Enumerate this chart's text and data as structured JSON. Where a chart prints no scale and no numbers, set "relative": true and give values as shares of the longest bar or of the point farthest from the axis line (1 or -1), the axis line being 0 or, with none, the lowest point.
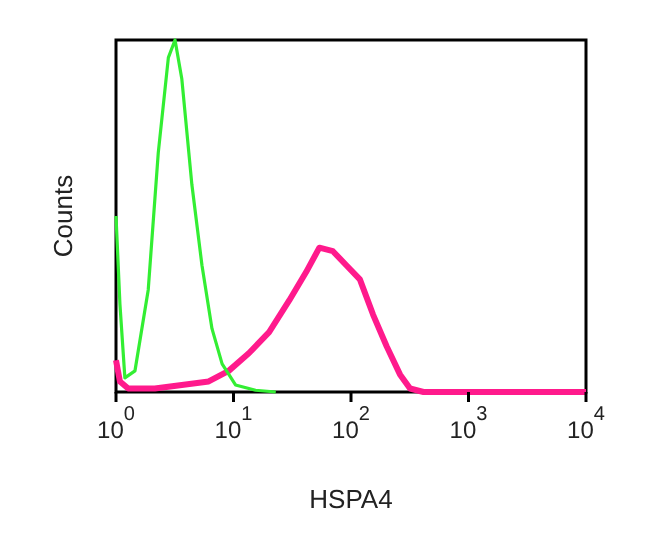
{
  "chart_data": {
    "type": "line",
    "relative": true,
    "xlabel": "HSPA4",
    "ylabel": "Counts",
    "log": "x",
    "xlim": [
      1,
      10000
    ],
    "xticks": [
      {
        "value": 1,
        "label": "10$^{0}$"
      },
      {
        "value": 10,
        "label": "10$^{1}$"
      },
      {
        "value": 100,
        "label": "10$^{2}$"
      },
      {
        "value": 1000,
        "label": "10$^{3}$"
      },
      {
        "value": 10000,
        "label": "10$^{4}$"
      }
    ],
    "legend": false,
    "marker": "none",
    "line_style": "solid",
    "series": [
      {
        "color": "#33ee33",
        "x": [
          1,
          1.03,
          1.08,
          1.19,
          1.45,
          1.88,
          2.29,
          2.79,
          3.18,
          3.63,
          4.42,
          5.39,
          6.56,
          8.0,
          10.4,
          15.4,
          22.9
        ],
        "values": [
          0.5,
          0.5,
          0.25,
          0.04,
          0.06,
          0.29,
          0.68,
          0.95,
          1.0,
          0.89,
          0.59,
          0.36,
          0.18,
          0.08,
          0.02,
          0.005,
          0
        ]
      },
      {
        "color": "#ff1a8c",
        "x": [
          1,
          1.08,
          1.27,
          2.14,
          3.63,
          6.15,
          9.1,
          13.5,
          20.1,
          29.8,
          41.4,
          53.8,
          70.1,
          91.2,
          119,
          154,
          201,
          261,
          318,
          414,
          10000
        ],
        "values": [
          0.09,
          0.03,
          0.01,
          0.01,
          0.02,
          0.03,
          0.06,
          0.11,
          0.17,
          0.26,
          0.34,
          0.41,
          0.4,
          0.36,
          0.32,
          0.22,
          0.13,
          0.05,
          0.01,
          0,
          0
        ]
      }
    ]
  }
}
